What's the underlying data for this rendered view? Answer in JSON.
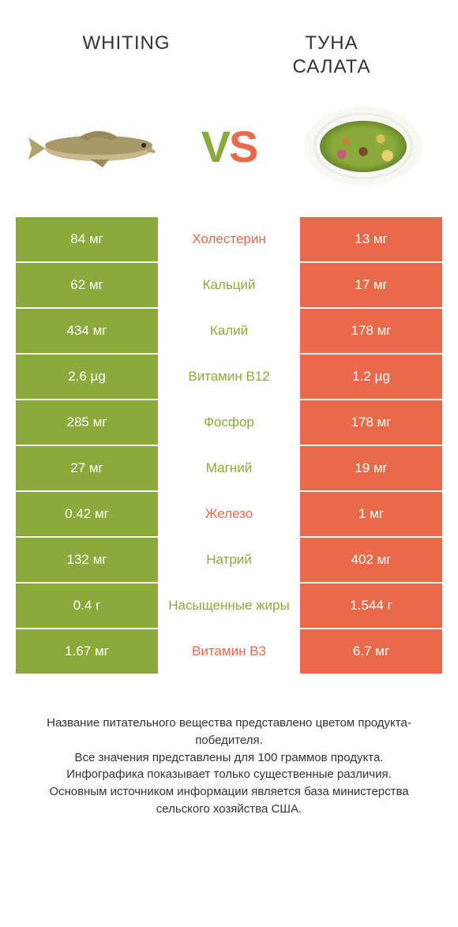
{
  "colors": {
    "left": "#8aab3b",
    "right": "#e86a4a",
    "text": "#333333",
    "bg": "#ffffff"
  },
  "typography": {
    "title_fontsize": 24,
    "vs_fontsize": 56,
    "cell_fontsize": 17,
    "footer_fontsize": 15,
    "font_family": "Arial"
  },
  "header": {
    "left_title": "WHITING",
    "right_title": "ТУНА\nСАЛАТА",
    "vs_v": "V",
    "vs_s": "S"
  },
  "images": {
    "left_name": "whiting-fish-image",
    "right_name": "tuna-salad-image"
  },
  "comparison": {
    "type": "comparison-table",
    "columns": [
      "left_value",
      "nutrient",
      "right_value"
    ],
    "rows": [
      {
        "left": "84 мг",
        "label": "Холестерин",
        "right": "13 мг",
        "winner": "right"
      },
      {
        "left": "62 мг",
        "label": "Кальций",
        "right": "17 мг",
        "winner": "left"
      },
      {
        "left": "434 мг",
        "label": "Калий",
        "right": "178 мг",
        "winner": "left"
      },
      {
        "left": "2.6 µg",
        "label": "Витамин B12",
        "right": "1.2 µg",
        "winner": "left"
      },
      {
        "left": "285 мг",
        "label": "Фосфор",
        "right": "178 мг",
        "winner": "left"
      },
      {
        "left": "27 мг",
        "label": "Магний",
        "right": "19 мг",
        "winner": "left"
      },
      {
        "left": "0.42 мг",
        "label": "Железо",
        "right": "1 мг",
        "winner": "right"
      },
      {
        "left": "132 мг",
        "label": "Натрий",
        "right": "402 мг",
        "winner": "left"
      },
      {
        "left": "0.4 г",
        "label": "Насыщенные жиры",
        "right": "1.544 г",
        "winner": "left"
      },
      {
        "left": "1.67 мг",
        "label": "Витамин B3",
        "right": "6.7 мг",
        "winner": "right"
      }
    ]
  },
  "footer": {
    "lines": [
      "Название питательного вещества представлено цветом продукта-победителя.",
      "Все значения представлены для 100 граммов продукта.",
      "Инфографика показывает только существенные различия.",
      "Основным источником информации является база министерства сельского хозяйства США."
    ]
  }
}
